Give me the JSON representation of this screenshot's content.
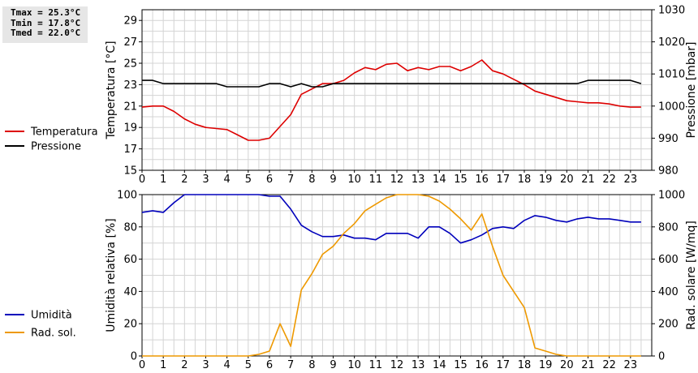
{
  "stats": {
    "tmax": "Tmax = 25.3°C",
    "tmin": "Tmin = 17.8°C",
    "tmed": "Tmed = 22.0°C"
  },
  "colors": {
    "temperature": "#dd0000",
    "pressure": "#000000",
    "humidity": "#0000bb",
    "radiation": "#ee9900",
    "grid": "#d4d4d4"
  },
  "chart_data": [
    {
      "type": "line",
      "x_ticks": [
        "0",
        "1",
        "2",
        "3",
        "4",
        "5",
        "6",
        "7",
        "8",
        "9",
        "10",
        "11",
        "12",
        "13",
        "14",
        "15",
        "16",
        "17",
        "18",
        "19",
        "20",
        "21",
        "22",
        "23"
      ],
      "xlim": [
        0,
        24
      ],
      "ylabel": "Temperatura [°C]",
      "ylim": [
        15,
        30
      ],
      "y_ticks": [
        "15",
        "17",
        "19",
        "21",
        "23",
        "25",
        "27",
        "29"
      ],
      "y2label": "Pressione [mbar]",
      "y2lim": [
        980,
        1030
      ],
      "y2_ticks": [
        "980",
        "990",
        "1000",
        "1010",
        "1020",
        "1030"
      ],
      "grid": true,
      "legend_position": "left",
      "series": [
        {
          "name": "Temperatura",
          "axis": "left",
          "color_key": "temperature",
          "x": [
            0,
            0.5,
            1,
            1.5,
            2,
            2.5,
            3,
            3.5,
            4,
            4.5,
            5,
            5.5,
            6,
            6.5,
            7,
            7.5,
            8,
            8.5,
            9,
            9.5,
            10,
            10.5,
            11,
            11.5,
            12,
            12.5,
            13,
            13.5,
            14,
            14.5,
            15,
            15.5,
            16,
            16.5,
            17,
            17.5,
            18,
            18.5,
            19,
            19.5,
            20,
            20.5,
            21,
            21.5,
            22,
            22.5,
            23,
            23.5
          ],
          "y": [
            20.9,
            21.0,
            21.0,
            20.5,
            19.8,
            19.3,
            19.0,
            18.9,
            18.8,
            18.3,
            17.8,
            17.8,
            18.0,
            19.1,
            20.2,
            22.1,
            22.6,
            23.1,
            23.1,
            23.4,
            24.1,
            24.6,
            24.4,
            24.9,
            25.0,
            24.3,
            24.6,
            24.4,
            24.7,
            24.7,
            24.3,
            24.7,
            25.3,
            24.3,
            24.0,
            23.5,
            23.0,
            22.4,
            22.1,
            21.8,
            21.5,
            21.4,
            21.3,
            21.3,
            21.2,
            21.0,
            20.9,
            20.9
          ]
        },
        {
          "name": "Pressione",
          "axis": "right",
          "color_key": "pressure",
          "x": [
            0,
            0.5,
            1,
            1.5,
            2,
            2.5,
            3,
            3.5,
            4,
            4.5,
            5,
            5.5,
            6,
            6.5,
            7,
            7.5,
            8,
            8.5,
            9,
            9.5,
            10,
            10.5,
            11,
            11.5,
            12,
            12.5,
            13,
            13.5,
            14,
            14.5,
            15,
            15.5,
            16,
            16.5,
            17,
            17.5,
            18,
            18.5,
            19,
            19.5,
            20,
            20.5,
            21,
            21.5,
            22,
            22.5,
            23,
            23.5
          ],
          "y": [
            1008,
            1008,
            1007,
            1007,
            1007,
            1007,
            1007,
            1007,
            1006,
            1006,
            1006,
            1006,
            1007,
            1007,
            1006,
            1007,
            1006,
            1006,
            1007,
            1007,
            1007,
            1007,
            1007,
            1007,
            1007,
            1007,
            1007,
            1007,
            1007,
            1007,
            1007,
            1007,
            1007,
            1007,
            1007,
            1007,
            1007,
            1007,
            1007,
            1007,
            1007,
            1007,
            1008,
            1008,
            1008,
            1008,
            1008,
            1007
          ]
        }
      ]
    },
    {
      "type": "line",
      "x_ticks": [
        "0",
        "1",
        "2",
        "3",
        "4",
        "5",
        "6",
        "7",
        "8",
        "9",
        "10",
        "11",
        "12",
        "13",
        "14",
        "15",
        "16",
        "17",
        "18",
        "19",
        "20",
        "21",
        "22",
        "23"
      ],
      "xlim": [
        0,
        24
      ],
      "ylabel": "Umidità relativa [%]",
      "ylim": [
        0,
        100
      ],
      "y_ticks": [
        "0",
        "20",
        "40",
        "60",
        "80",
        "100"
      ],
      "y2label": "Rad. solare [W/mq]",
      "y2lim": [
        0,
        1000
      ],
      "y2_ticks": [
        "0",
        "200",
        "400",
        "600",
        "800",
        "1000"
      ],
      "grid": true,
      "legend_position": "left",
      "series": [
        {
          "name": "Umidità",
          "axis": "left",
          "color_key": "humidity",
          "x": [
            0,
            0.5,
            1,
            1.5,
            2,
            2.5,
            3,
            3.5,
            4,
            4.5,
            5,
            5.5,
            6,
            6.5,
            7,
            7.5,
            8,
            8.5,
            9,
            9.5,
            10,
            10.5,
            11,
            11.5,
            12,
            12.5,
            13,
            13.5,
            14,
            14.5,
            15,
            15.5,
            16,
            16.5,
            17,
            17.5,
            18,
            18.5,
            19,
            19.5,
            20,
            20.5,
            21,
            21.5,
            22,
            22.5,
            23,
            23.5
          ],
          "y": [
            89,
            90,
            89,
            95,
            100,
            100,
            100,
            100,
            100,
            100,
            100,
            100,
            99,
            99,
            91,
            81,
            77,
            74,
            74,
            75,
            73,
            73,
            72,
            76,
            76,
            76,
            73,
            80,
            80,
            76,
            70,
            72,
            75,
            79,
            80,
            79,
            84,
            87,
            86,
            84,
            83,
            85,
            86,
            85,
            85,
            84,
            83,
            83
          ]
        },
        {
          "name": "Rad. sol.",
          "axis": "right",
          "color_key": "radiation",
          "x": [
            0,
            0.5,
            1,
            1.5,
            2,
            2.5,
            3,
            3.5,
            4,
            4.5,
            5,
            5.5,
            6,
            6.5,
            7,
            7.5,
            8,
            8.5,
            9,
            9.5,
            10,
            10.5,
            11,
            11.5,
            12,
            12.5,
            13,
            13.5,
            14,
            14.5,
            15,
            15.5,
            16,
            16.5,
            17,
            17.5,
            18,
            18.5,
            19,
            19.5,
            20,
            20.5,
            21,
            21.5,
            22,
            22.5,
            23,
            23.5
          ],
          "y": [
            0,
            0,
            0,
            0,
            0,
            0,
            0,
            0,
            0,
            0,
            0,
            10,
            30,
            200,
            60,
            410,
            510,
            630,
            680,
            760,
            820,
            900,
            940,
            980,
            1000,
            1000,
            1000,
            990,
            960,
            910,
            850,
            780,
            880,
            680,
            500,
            400,
            300,
            50,
            30,
            10,
            0,
            0,
            0,
            0,
            0,
            0,
            0,
            0
          ]
        }
      ]
    }
  ]
}
